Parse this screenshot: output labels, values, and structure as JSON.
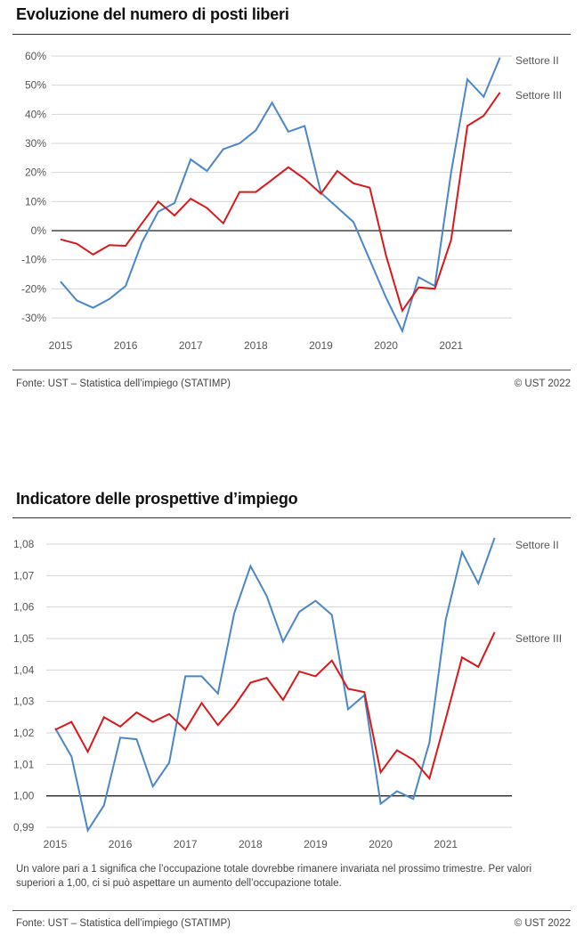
{
  "chart_data": [
    {
      "type": "line",
      "title": "Evoluzione del numero di posti liberi",
      "xlabel": "",
      "ylabel": "",
      "x": [
        "2015Q1",
        "2015Q2",
        "2015Q3",
        "2015Q4",
        "2016Q1",
        "2016Q2",
        "2016Q3",
        "2016Q4",
        "2017Q1",
        "2017Q2",
        "2017Q3",
        "2017Q4",
        "2018Q1",
        "2018Q2",
        "2018Q3",
        "2018Q4",
        "2019Q1",
        "2019Q2",
        "2019Q3",
        "2019Q4",
        "2020Q1",
        "2020Q2",
        "2020Q3",
        "2020Q4",
        "2021Q1",
        "2021Q2",
        "2021Q3",
        "2021Q4"
      ],
      "x_ticks": [
        "2015",
        "2016",
        "2017",
        "2018",
        "2019",
        "2020",
        "2021"
      ],
      "y_ticks": [
        "60%",
        "50%",
        "40%",
        "30%",
        "20%",
        "10%",
        "0%",
        "-10%",
        "-20%",
        "-30%"
      ],
      "y_tick_values": [
        60,
        50,
        40,
        30,
        20,
        10,
        0,
        -10,
        -20,
        -30
      ],
      "ylim": [
        -35,
        60
      ],
      "reference_line": 0,
      "grid": true,
      "series": [
        {
          "name": "Settore II",
          "color": "#4a86c8",
          "values": [
            -17.5,
            -24,
            -26.5,
            -23.5,
            -19,
            -4,
            6.5,
            9.5,
            24.5,
            20.5,
            28,
            30,
            34.5,
            44,
            34,
            36,
            13,
            8,
            3,
            -10,
            -23,
            -34.5,
            -16,
            -19,
            20,
            52,
            46,
            59.5
          ]
        },
        {
          "name": "Settore III",
          "color": "#d7191c",
          "values": [
            -3,
            -4.5,
            -8.2,
            -5,
            -5.2,
            2.5,
            10,
            5.2,
            11,
            7.8,
            2.5,
            13.3,
            13.3,
            17.5,
            21.8,
            17.8,
            12.7,
            20.5,
            16.3,
            14.8,
            -8.5,
            -27.5,
            -19.5,
            -20,
            -3.2,
            36,
            39.5,
            47.5
          ]
        }
      ],
      "legend": "right-end-labels"
    },
    {
      "type": "line",
      "title": "Indicatore delle prospettive d’impiego",
      "xlabel": "",
      "ylabel": "",
      "x": [
        "2015Q1",
        "2015Q2",
        "2015Q3",
        "2015Q4",
        "2016Q1",
        "2016Q2",
        "2016Q3",
        "2016Q4",
        "2017Q1",
        "2017Q2",
        "2017Q3",
        "2017Q4",
        "2018Q1",
        "2018Q2",
        "2018Q3",
        "2018Q4",
        "2019Q1",
        "2019Q2",
        "2019Q3",
        "2019Q4",
        "2020Q1",
        "2020Q2",
        "2020Q3",
        "2020Q4",
        "2021Q1",
        "2021Q2",
        "2021Q3",
        "2021Q4"
      ],
      "x_ticks": [
        "2015",
        "2016",
        "2017",
        "2018",
        "2019",
        "2020",
        "2021"
      ],
      "y_ticks": [
        "1,08",
        "1,07",
        "1,06",
        "1,05",
        "1,04",
        "1,03",
        "1,02",
        "1,01",
        "1,00",
        "0,99"
      ],
      "y_tick_values": [
        1.08,
        1.07,
        1.06,
        1.05,
        1.04,
        1.03,
        1.02,
        1.01,
        1.0,
        0.99
      ],
      "ylim": [
        0.99,
        1.082
      ],
      "reference_line": 1.0,
      "grid": true,
      "series": [
        {
          "name": "Settore II",
          "color": "#4a86c8",
          "values": [
            1.0215,
            1.0125,
            0.989,
            0.997,
            1.0185,
            1.018,
            1.003,
            1.0105,
            1.038,
            1.038,
            1.0325,
            1.058,
            1.073,
            1.0635,
            1.049,
            1.0585,
            1.062,
            1.0575,
            1.0275,
            1.032,
            0.9975,
            1.0015,
            0.999,
            1.017,
            1.056,
            1.0775,
            1.0675,
            1.082
          ]
        },
        {
          "name": "Settore III",
          "color": "#d7191c",
          "values": [
            1.021,
            1.0235,
            1.014,
            1.025,
            1.022,
            1.0265,
            1.0235,
            1.026,
            1.021,
            1.0295,
            1.0225,
            1.0285,
            1.036,
            1.0375,
            1.0305,
            1.0395,
            1.038,
            1.043,
            1.034,
            1.033,
            1.0075,
            1.0145,
            1.0115,
            1.0055,
            1.0245,
            1.044,
            1.041,
            1.052
          ]
        }
      ],
      "legend": "right-end-labels"
    }
  ],
  "chart1": {
    "title": "Evoluzione del numero di posti liberi",
    "source": "Fonte: UST – Statistica dell’impiego (STATIMP)",
    "copyright": "© UST 2022"
  },
  "chart2": {
    "title": "Indicatore delle prospettive d’impiego",
    "note": "Un valore pari a 1 significa che l’occupazione totale dovrebbe rimanere invariata nel prossimo trimestre. Per valori superiori a 1,00, ci si può aspettare un aumento dell’occupazione totale.",
    "source": "Fonte: UST – Statistica dell’impiego (STATIMP)",
    "copyright": "© UST 2022"
  }
}
